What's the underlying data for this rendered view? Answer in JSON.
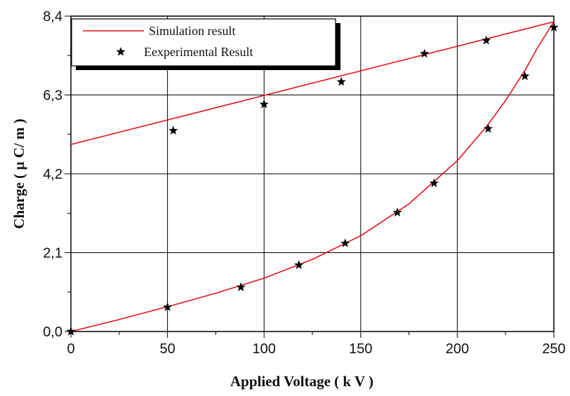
{
  "chart_data": {
    "type": "line",
    "xlabel": "Applied Voltage ( k V )",
    "ylabel": "Charge ( µ C/ m )",
    "xlim": [
      0,
      250
    ],
    "ylim": [
      0,
      8.4
    ],
    "x_ticks": [
      "0",
      "50",
      "100",
      "150",
      "200",
      "250"
    ],
    "y_ticks": [
      "0,0",
      "2,1",
      "4,2",
      "6,3",
      "8,4"
    ],
    "grid": true,
    "legend_position": "top-left",
    "legend": [
      "Simulation result",
      "Eexperimental Result"
    ],
    "series": [
      {
        "name": "Simulation result",
        "kind": "line",
        "color": "#e0141e",
        "branches": [
          {
            "x": [
              0,
              25,
              50,
              75,
              100,
              125,
              150,
              175,
              200,
              215,
              225,
              235,
              242,
              250
            ],
            "y": [
              0,
              0.32,
              0.66,
              1.02,
              1.42,
              1.92,
              2.55,
              3.4,
              4.55,
              5.45,
              6.15,
              6.95,
              7.6,
              8.25
            ]
          },
          {
            "x": [
              0,
              250
            ],
            "y": [
              4.98,
              8.25
            ]
          }
        ]
      },
      {
        "name": "Eexperimental Result",
        "kind": "scatter",
        "marker": "star",
        "color": "#000000",
        "x": [
          0,
          50,
          88,
          118,
          142,
          169,
          188,
          216,
          235,
          250,
          53,
          100,
          140,
          183,
          215
        ],
        "y": [
          0,
          0.65,
          1.18,
          1.77,
          2.35,
          3.17,
          3.95,
          5.4,
          6.8,
          8.1,
          5.35,
          6.05,
          6.65,
          7.4,
          7.75
        ]
      }
    ]
  }
}
